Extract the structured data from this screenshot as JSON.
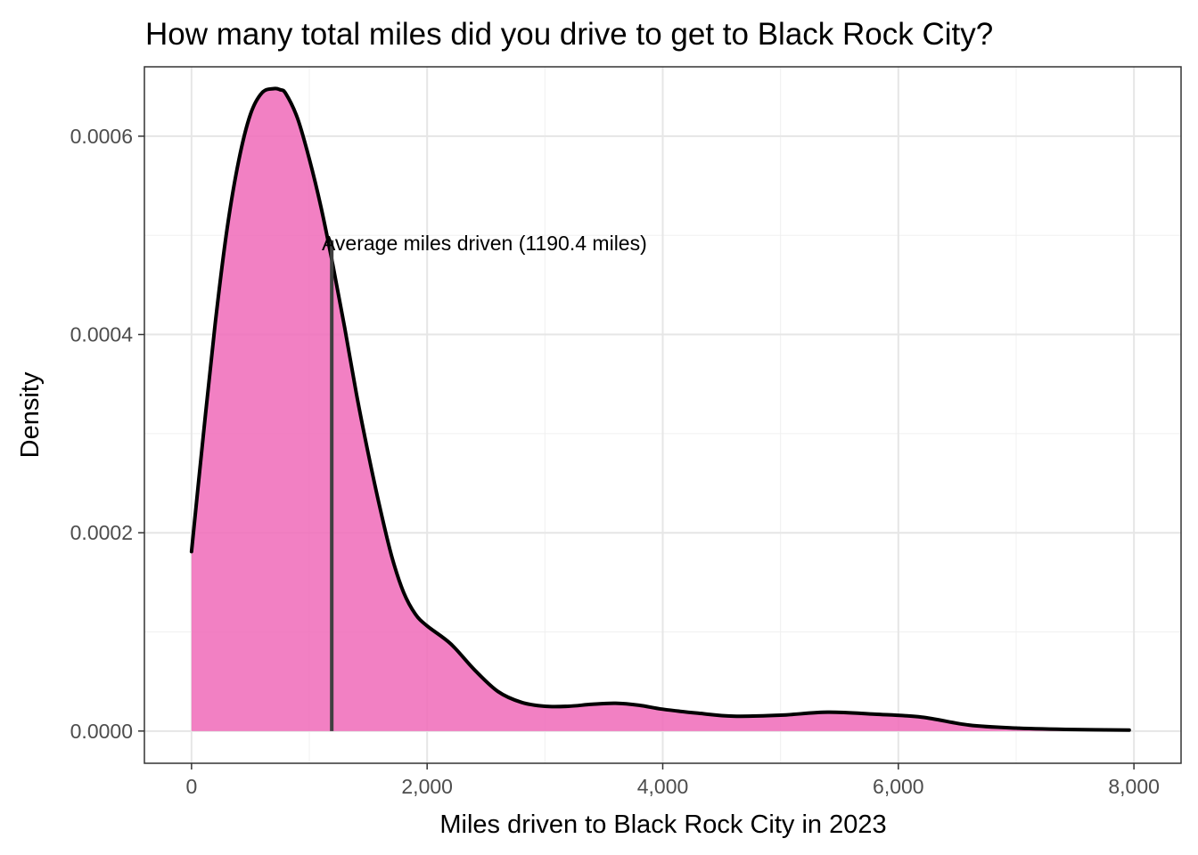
{
  "chart_data": {
    "type": "area",
    "title": "How many total miles did you drive to get to Black Rock City?",
    "xlabel": "Miles driven to Black Rock City in 2023",
    "ylabel": "Density",
    "xlim": [
      -400,
      8400
    ],
    "ylim": [
      -3.25e-05,
      0.00067
    ],
    "x_ticks": [
      0,
      2000,
      4000,
      6000,
      8000
    ],
    "x_tick_labels": [
      "0",
      "2,000",
      "4,000",
      "6,000",
      "8,000"
    ],
    "y_ticks": [
      0,
      0.0002,
      0.0004,
      0.0006
    ],
    "y_tick_labels": [
      "0.0000",
      "0.0002",
      "0.0004",
      "0.0006"
    ],
    "grid": true,
    "fill_color": "#f06ab8",
    "line_color": "#000000",
    "series": [
      {
        "x": [
          0,
          100,
          200,
          300,
          400,
          500,
          600,
          700,
          750,
          800,
          900,
          1000,
          1100,
          1200,
          1300,
          1400,
          1500,
          1600,
          1700,
          1800,
          1900,
          2000,
          2200,
          2400,
          2600,
          2800,
          3000,
          3200,
          3400,
          3600,
          3800,
          4000,
          4300,
          4600,
          5000,
          5400,
          5800,
          6200,
          6600,
          7000,
          7500,
          7960
        ],
        "y": [
          0.000181,
          0.000298,
          0.00041,
          0.000505,
          0.000575,
          0.000622,
          0.000644,
          0.000648,
          0.000647,
          0.000643,
          0.000618,
          0.000577,
          0.000528,
          0.00047,
          0.000407,
          0.00034,
          0.00028,
          0.000225,
          0.000176,
          0.00014,
          0.000118,
          0.000106,
          8.8e-05,
          6.2e-05,
          4e-05,
          2.9e-05,
          2.5e-05,
          2.5e-05,
          2.7e-05,
          2.8e-05,
          2.6e-05,
          2.2e-05,
          1.8e-05,
          1.5e-05,
          1.6e-05,
          1.9e-05,
          1.7e-05,
          1.4e-05,
          6e-06,
          3e-06,
          1.5e-06,
          1e-06
        ]
      }
    ],
    "mean_line": {
      "x": 1190.4,
      "y_end": 0.000495,
      "label": "Average miles driven (1190.4 miles)",
      "color": "#404040"
    }
  }
}
